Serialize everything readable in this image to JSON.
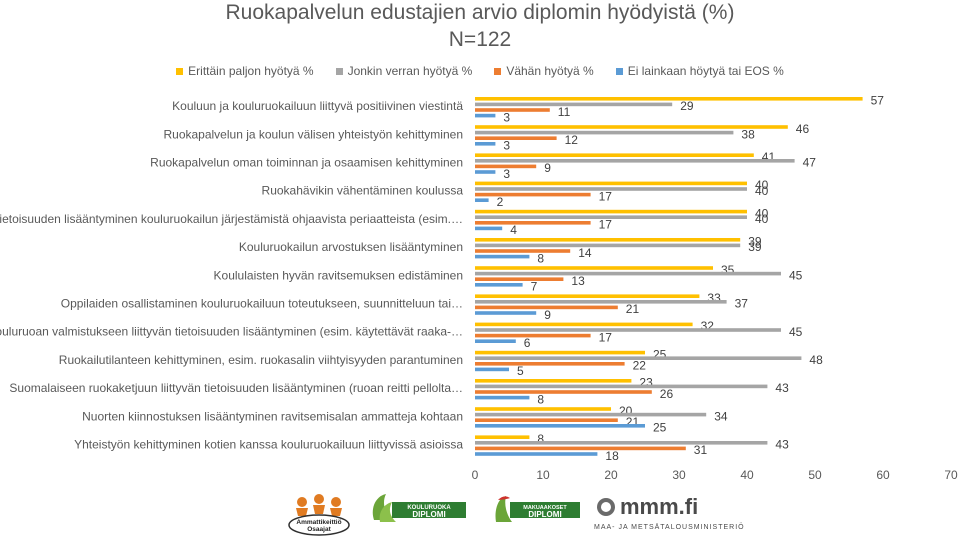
{
  "chart_data": {
    "type": "bar",
    "orientation": "horizontal",
    "title": "Ruokapalvelun edustajien arvio diplomin hyödyistä (%)",
    "subtitle": "N=122",
    "xlim": [
      0,
      70
    ],
    "xticks": [
      0,
      10,
      20,
      30,
      40,
      50,
      60,
      70
    ],
    "grid": false,
    "legend_position": "top",
    "categories": [
      "Kouluun ja kouluruokailuun liittyvä positiivinen viestintä",
      "Ruokapalvelun ja koulun välisen yhteistyön kehittyminen",
      "Ruokapalvelun oman toiminnan ja osaamisen kehittyminen",
      "Ruokahävikin vähentäminen koulussa",
      "Tietoisuuden lisääntyminen kouluruokailun järjestämistä ohjaavista periaatteista (esim.…",
      "Kouluruokailun arvostuksen lisääntyminen",
      "Koululaisten hyvän ravitsemuksen edistäminen",
      "Oppilaiden osallistaminen kouluruokailuun toteutukseen, suunnitteluun tai…",
      "Kouluruoan valmistukseen liittyvän tietoisuuden lisääntyminen (esim. käytettävät raaka-…",
      "Ruokailutilanteen kehittyminen, esim. ruokasalin viihtyisyyden parantuminen",
      "Suomalaiseen ruokaketjuun liittyvän tietoisuuden lisääntyminen (ruoan reitti pellolta…",
      "Nuorten kiinnostuksen lisääntyminen ravitsemisalan ammatteja kohtaan",
      "Yhteistyön kehittyminen kotien kanssa kouluruokailuun liittyvissä asioissa"
    ],
    "series": [
      {
        "name": "Erittäin paljon hyötyä %",
        "color": "#FFC000",
        "values": [
          57,
          46,
          41,
          40,
          40,
          39,
          35,
          33,
          32,
          25,
          23,
          20,
          8
        ]
      },
      {
        "name": "Jonkin verran hyötyä %",
        "color": "#A5A5A5",
        "values": [
          29,
          38,
          47,
          40,
          40,
          39,
          45,
          37,
          45,
          48,
          43,
          34,
          43
        ]
      },
      {
        "name": "Vähän hyötyä %",
        "color": "#ED7D31",
        "values": [
          11,
          12,
          9,
          17,
          17,
          14,
          13,
          21,
          17,
          22,
          26,
          21,
          31
        ]
      },
      {
        "name": "Ei lainkaan höytyä tai EOS %",
        "color": "#5B9BD5",
        "values": [
          3,
          3,
          3,
          2,
          4,
          8,
          7,
          9,
          6,
          5,
          8,
          25,
          18
        ]
      }
    ]
  },
  "logos": {
    "ammattikeittio": "Ammattikeittiö Osaajat",
    "kouluruoka": "KOULURUOKA DIPLOMI",
    "makuaakoset": "MAKUAAKOSET DIPLOMI",
    "mmm": "mmm.fi",
    "mmm_sub": "MAA- JA METSÄTALOUSMINISTERIÖ"
  }
}
